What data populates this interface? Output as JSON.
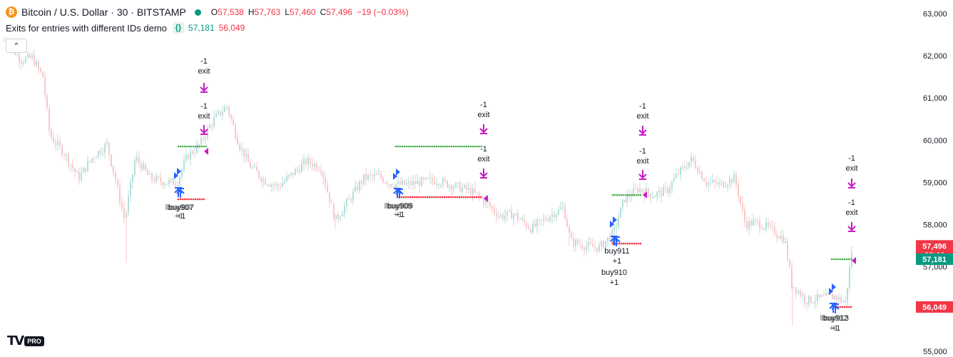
{
  "header": {
    "symbol_icon": "bitcoin-icon",
    "title": "Bitcoin / U.S. Dollar · 30 · BITSTAMP",
    "ohlc": [
      {
        "label": "O",
        "value": "57,538"
      },
      {
        "label": "H",
        "value": "57,763"
      },
      {
        "label": "L",
        "value": "57,460"
      },
      {
        "label": "C",
        "value": "57,496"
      }
    ],
    "change": "−19 (−0.03%)"
  },
  "strategy": {
    "name": "Exits for entries with different IDs demo",
    "icon": "code-braces-icon",
    "value_1": "57,181",
    "value_2": "56,049"
  },
  "logo": {
    "mark": "TV",
    "badge": "PRO"
  },
  "chart_data": {
    "type": "candlestick",
    "y_axis": {
      "side": "right",
      "ylim": [
        55000,
        63000
      ],
      "ticks": [
        "55,000",
        "56,000",
        "57,000",
        "58,000",
        "59,000",
        "60,000",
        "61,000",
        "62,000",
        "63,000"
      ]
    },
    "price_labels": [
      {
        "price": 57496,
        "text": "57,496",
        "sub": "19:44",
        "color": "#f23645"
      },
      {
        "price": 57181,
        "text": "57,181",
        "color": "#089981"
      },
      {
        "price": 56049,
        "text": "56,049",
        "color": "#f23645"
      }
    ],
    "colors": {
      "up": "#b2dfdb",
      "down": "#f7c9c9",
      "entry": "#2962ff",
      "exit": "#c71bc7",
      "stop": "#f23645",
      "limit": "#4caf50"
    },
    "series_path": [
      [
        0,
        62450
      ],
      [
        10,
        62300
      ],
      [
        30,
        61900
      ],
      [
        45,
        61950
      ],
      [
        60,
        61500
      ],
      [
        70,
        60100
      ],
      [
        90,
        59700
      ],
      [
        110,
        59100
      ],
      [
        130,
        59600
      ],
      [
        150,
        59900
      ],
      [
        160,
        59200
      ],
      [
        175,
        58100
      ],
      [
        190,
        59600
      ],
      [
        210,
        59100
      ],
      [
        230,
        59000
      ],
      [
        248,
        59000
      ],
      [
        262,
        59600
      ],
      [
        280,
        59900
      ],
      [
        300,
        60500
      ],
      [
        318,
        60800
      ],
      [
        335,
        59900
      ],
      [
        350,
        59400
      ],
      [
        370,
        59050
      ],
      [
        390,
        58900
      ],
      [
        410,
        59200
      ],
      [
        430,
        59500
      ],
      [
        450,
        59350
      ],
      [
        470,
        58100
      ],
      [
        490,
        58600
      ],
      [
        510,
        59100
      ],
      [
        530,
        59150
      ],
      [
        550,
        58950
      ],
      [
        570,
        58950
      ],
      [
        590,
        59000
      ],
      [
        610,
        59050
      ],
      [
        630,
        58950
      ],
      [
        660,
        58800
      ],
      [
        680,
        58550
      ],
      [
        700,
        58200
      ],
      [
        720,
        58250
      ],
      [
        745,
        57900
      ],
      [
        770,
        58200
      ],
      [
        790,
        58400
      ],
      [
        800,
        57600
      ],
      [
        820,
        57500
      ],
      [
        840,
        57450
      ],
      [
        860,
        57800
      ],
      [
        875,
        58600
      ],
      [
        895,
        58850
      ],
      [
        915,
        58700
      ],
      [
        935,
        58800
      ],
      [
        950,
        59200
      ],
      [
        970,
        59550
      ],
      [
        990,
        59000
      ],
      [
        1010,
        58950
      ],
      [
        1030,
        59100
      ],
      [
        1045,
        58000
      ],
      [
        1060,
        58050
      ],
      [
        1080,
        57900
      ],
      [
        1100,
        57650
      ],
      [
        1110,
        56600
      ],
      [
        1130,
        56200
      ],
      [
        1150,
        56250
      ],
      [
        1170,
        56300
      ],
      [
        1185,
        56150
      ],
      [
        1195,
        57500
      ]
    ],
    "trade_groups": [
      {
        "entry": {
          "label": "buy907",
          "qty": "+1",
          "overlap_label": "lbuy907",
          "overlap_qty": "+1"
        },
        "exits": [
          {
            "label": "exit",
            "qty": "-1"
          },
          {
            "label": "exit",
            "qty": "-1"
          }
        ],
        "limit_price": 59850,
        "stop_price": 58600
      },
      {
        "entry": {
          "label": "buy909",
          "qty": "+1",
          "overlap_label": "lbuy908",
          "overlap_qty": "+1"
        },
        "exits": [
          {
            "label": "exit",
            "qty": "-1"
          },
          {
            "label": "exit",
            "qty": "-1"
          }
        ],
        "limit_price": 59850,
        "stop_price": 58650
      },
      {
        "entry": {
          "label": "buy911",
          "qty": "+1"
        },
        "entry_2": {
          "label": "buy910",
          "qty": "+1"
        },
        "exits": [
          {
            "label": "exit",
            "qty": "-1"
          },
          {
            "label": "exit",
            "qty": "-1"
          }
        ],
        "limit_price": 58700,
        "stop_price": 57550
      },
      {
        "entry": {
          "label": "buy913",
          "qty": "+1",
          "overlap_label": "lbuy912",
          "overlap_qty": "+1"
        },
        "exits": [
          {
            "label": "exit",
            "qty": "-1"
          },
          {
            "label": "exit",
            "qty": "-1"
          }
        ],
        "limit_price": 57181,
        "stop_price": 56049
      }
    ]
  }
}
